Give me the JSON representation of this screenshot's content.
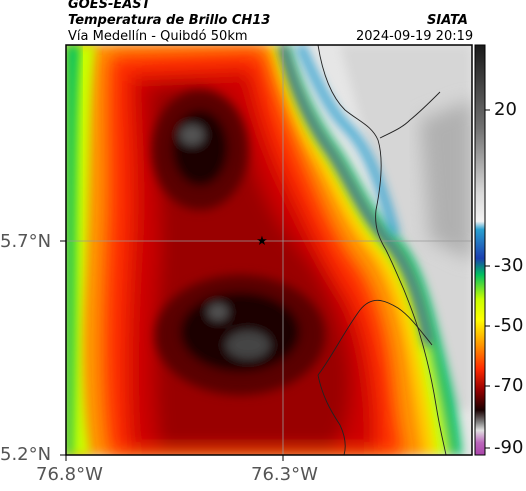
{
  "header": {
    "satellite": "GOES-EAST",
    "product": "Temperatura de Brillo CH13",
    "region": "Vía Medellín - Quibdó 50km",
    "agency": "SIATA",
    "datetime": "2024-09-19 20:19"
  },
  "axes": {
    "x_ticks": [
      "76.8°W",
      "76.3°W"
    ],
    "y_ticks": [
      "5.7°N",
      "5.2°N"
    ]
  },
  "colorbar": {
    "ticks": [
      "20",
      "-30",
      "-50",
      "-70",
      "-90"
    ],
    "colors": [
      "#2b2b2b",
      "#7a7a7a",
      "#b9b9b9",
      "#e6e6e6",
      "#2aa0d0",
      "#1b3fb0",
      "#00c060",
      "#c8ff00",
      "#ffff00",
      "#ff9900",
      "#ff2a00",
      "#cc0000",
      "#6a0000",
      "#1a0000",
      "#606060",
      "#bb66bb"
    ]
  },
  "marker": {
    "symbol": "★",
    "label": "station-star"
  }
}
